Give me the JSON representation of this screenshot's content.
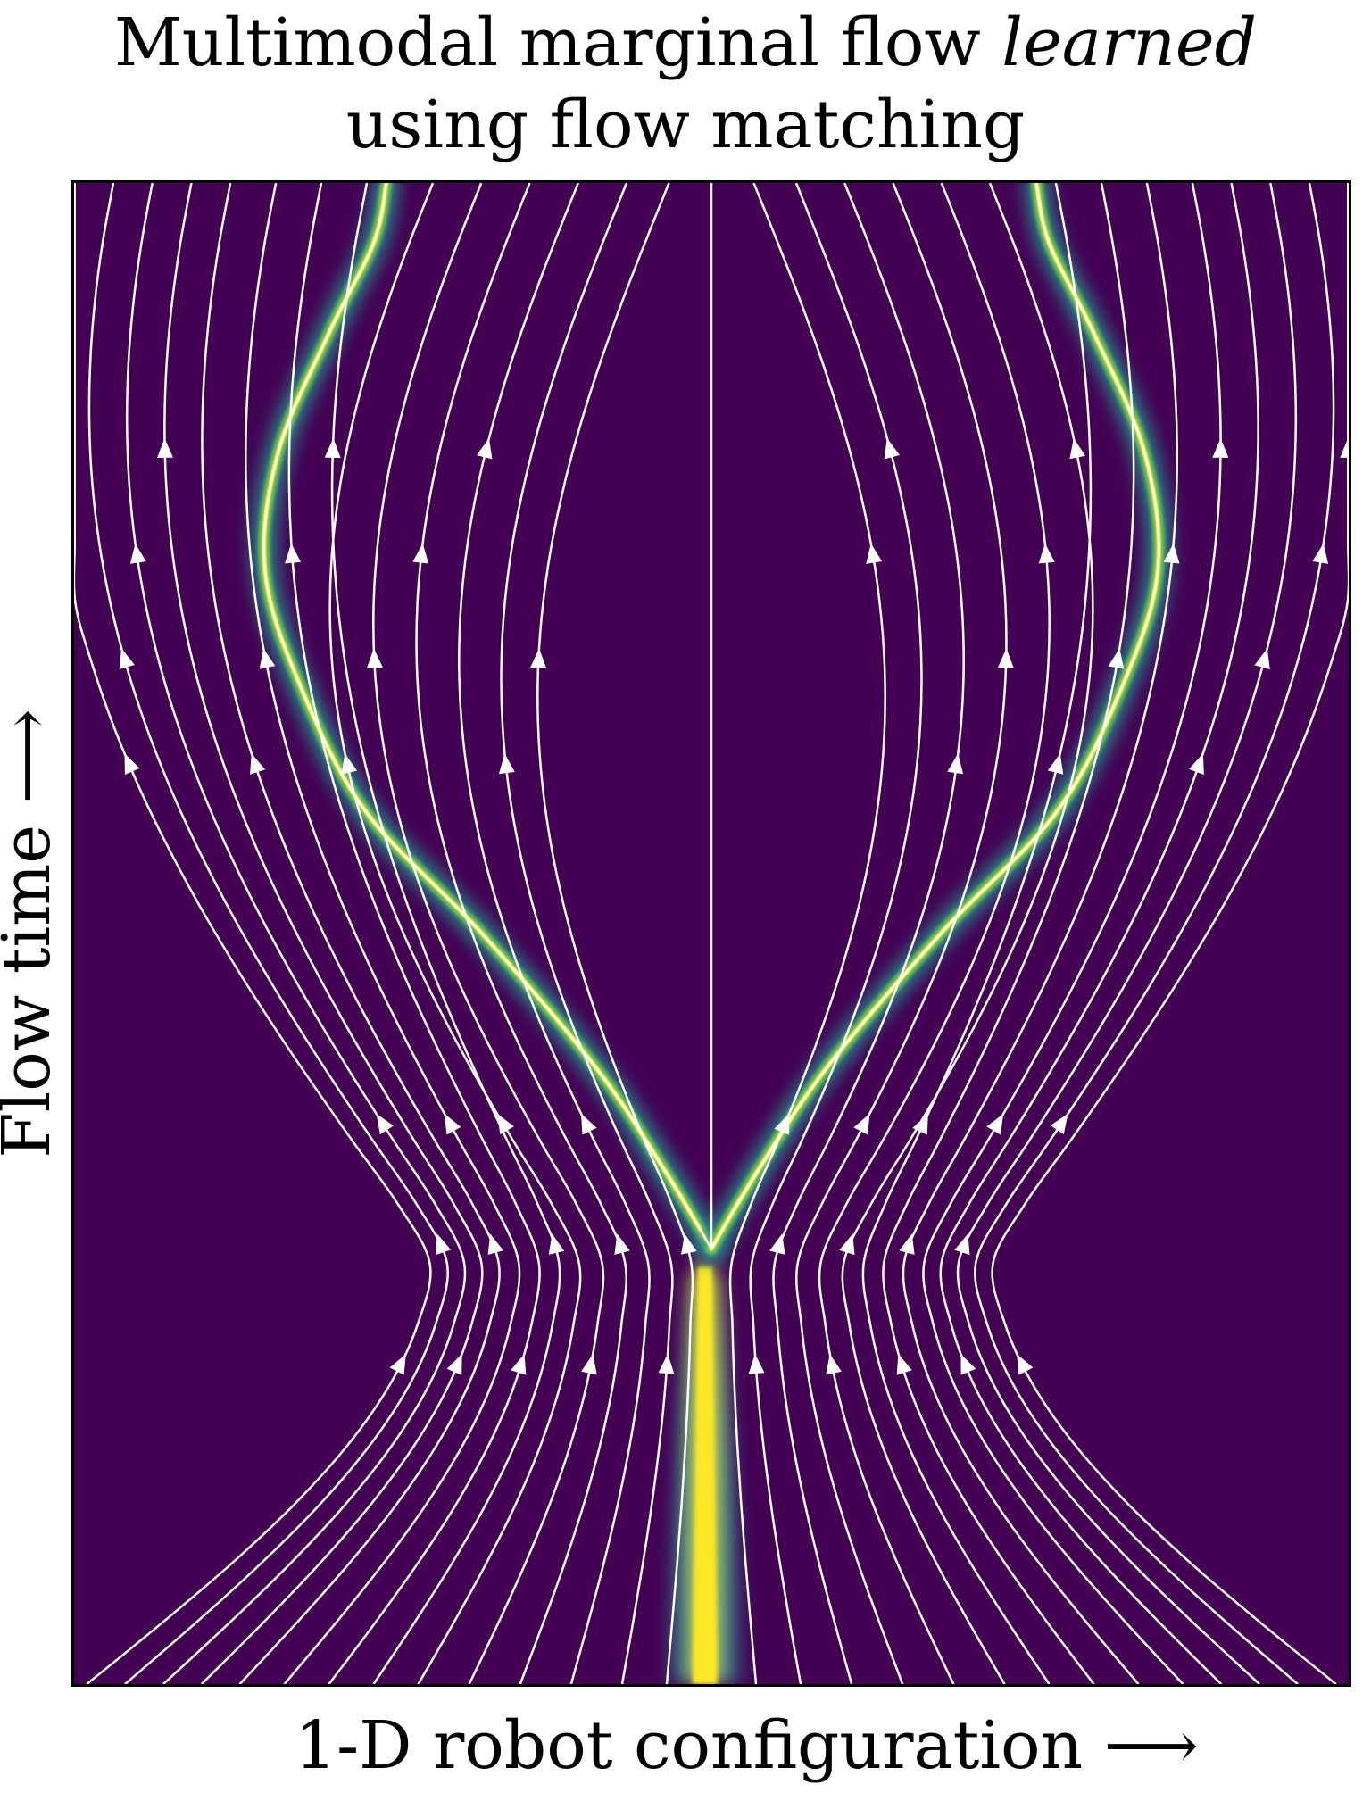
{
  "chart_data": {
    "type": "streamplot",
    "title": {
      "line1_prefix": "Multimodal marginal flow ",
      "line1_emphasis": "learned",
      "line2": "using flow matching"
    },
    "xlabel": "1-D robot configuration",
    "ylabel": "Flow time",
    "x_arrow": "⟶",
    "y_arrow": "⟶",
    "xlim": [
      -1,
      1
    ],
    "ylim": [
      0,
      1
    ],
    "colormap": "viridis",
    "background_color": "#440154",
    "stream_color": "#ffffff",
    "density_band": {
      "description": "high-density region of the marginal distribution",
      "split_time": 0.29,
      "center_initial": -0.01,
      "width_initial": 0.06,
      "width_final": 0.012,
      "modes_final": [
        -0.51,
        0.51
      ]
    },
    "mode_paths": [
      {
        "name": "left-mode",
        "points": [
          [
            0.0,
            0.29
          ],
          [
            -0.07,
            0.34
          ],
          [
            -0.18,
            0.41
          ],
          [
            -0.36,
            0.5
          ],
          [
            -0.54,
            0.58
          ],
          [
            -0.64,
            0.66
          ],
          [
            -0.7,
            0.74
          ],
          [
            -0.68,
            0.82
          ],
          [
            -0.6,
            0.9
          ],
          [
            -0.53,
            0.96
          ],
          [
            -0.51,
            1.0
          ]
        ]
      },
      {
        "name": "right-mode",
        "points": [
          [
            0.0,
            0.29
          ],
          [
            0.07,
            0.34
          ],
          [
            0.18,
            0.41
          ],
          [
            0.36,
            0.5
          ],
          [
            0.54,
            0.58
          ],
          [
            0.64,
            0.66
          ],
          [
            0.7,
            0.74
          ],
          [
            0.68,
            0.82
          ],
          [
            0.6,
            0.9
          ],
          [
            0.53,
            0.96
          ],
          [
            0.51,
            1.0
          ]
        ]
      }
    ],
    "center_stem": [
      [
        0.0,
        0.29
      ],
      [
        0.0,
        1.0
      ]
    ],
    "streamline_x0": [
      -0.98,
      -0.92,
      -0.86,
      -0.8,
      -0.74,
      -0.67,
      -0.6,
      -0.53,
      -0.46,
      -0.38,
      -0.3,
      -0.22,
      -0.14,
      -0.07,
      0.07,
      0.14,
      0.22,
      0.3,
      0.38,
      0.46,
      0.53,
      0.6,
      0.67,
      0.74,
      0.8,
      0.86,
      0.92,
      0.98
    ],
    "grid": false,
    "legend": "none"
  }
}
